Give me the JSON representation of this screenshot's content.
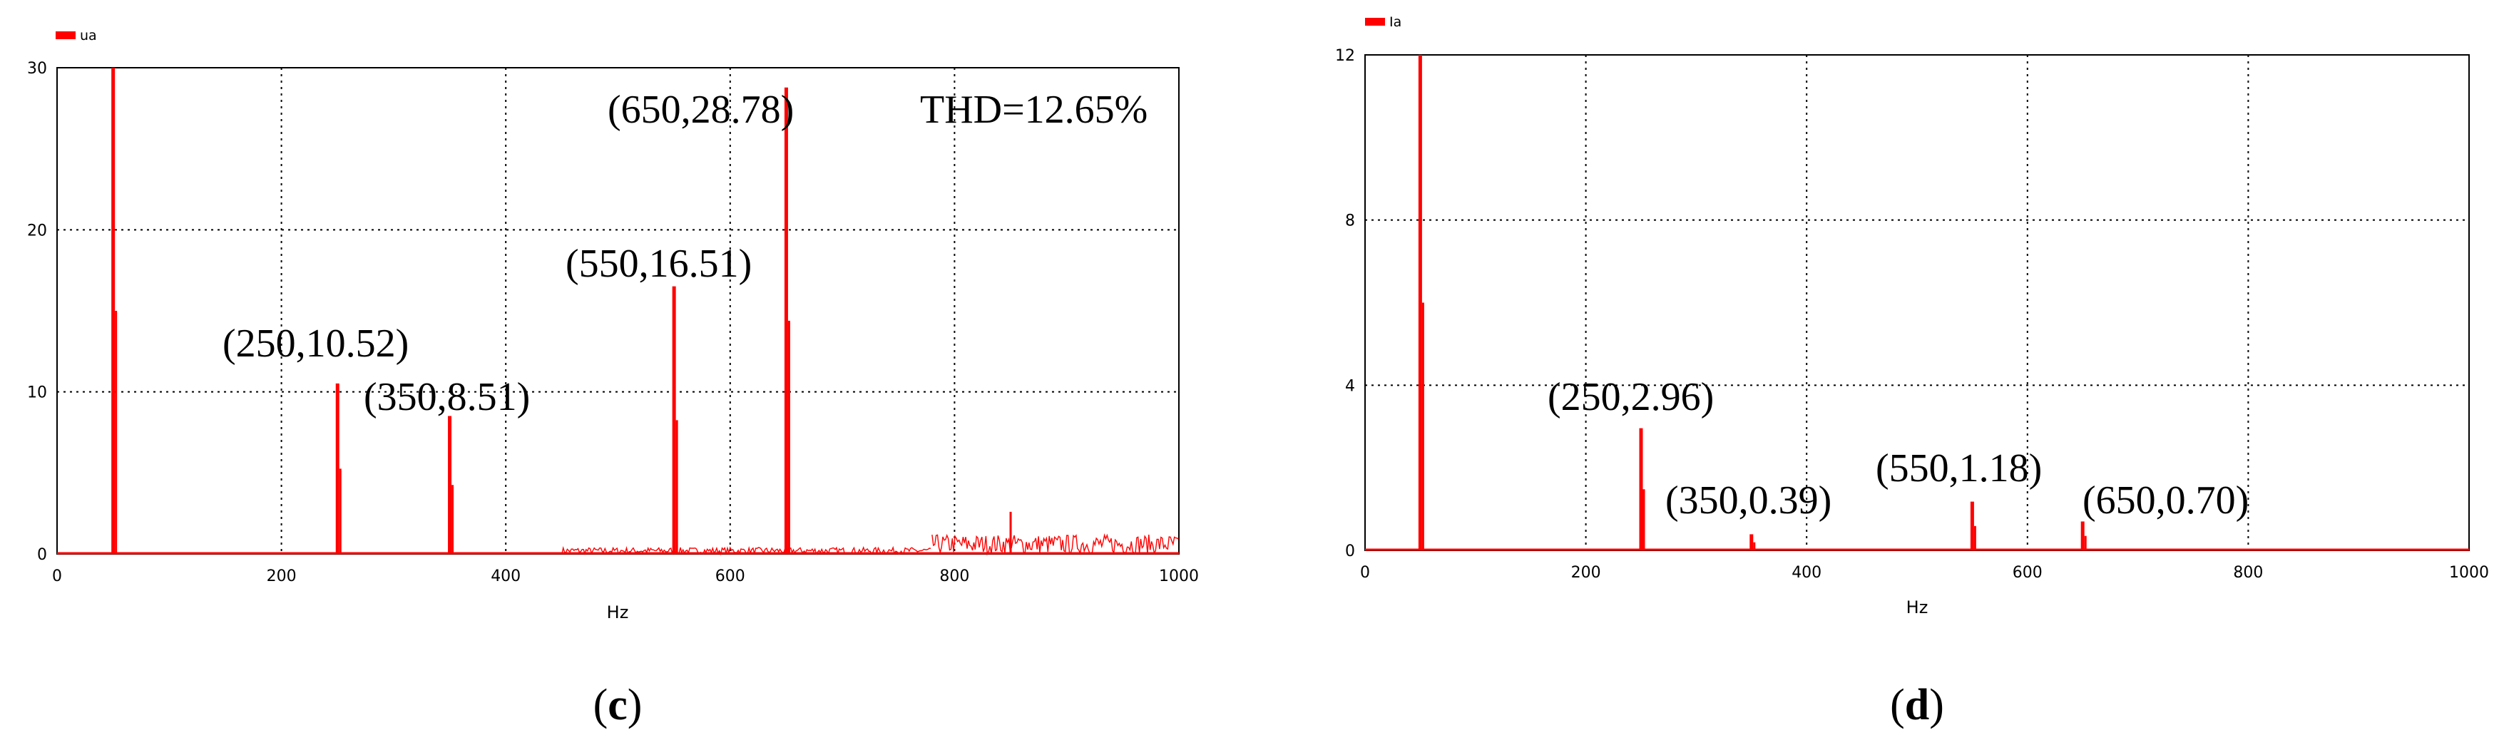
{
  "panels": [
    {
      "legend": "ua",
      "caption_letter": "c",
      "chart_data": {
        "type": "bar",
        "series": [
          {
            "name": "ua"
          }
        ],
        "xlabel": "Hz",
        "ylabel": "",
        "xlim": [
          0,
          1000
        ],
        "ylim": [
          0,
          30
        ],
        "x_ticks": [
          0,
          200,
          400,
          600,
          800,
          1000
        ],
        "y_ticks": [
          0,
          10,
          20,
          30
        ],
        "grid": true,
        "legend_position": "top-left",
        "peaks": [
          {
            "x": 50,
            "y": 30
          },
          {
            "x": 250,
            "y": 10.52
          },
          {
            "x": 350,
            "y": 8.51
          },
          {
            "x": 550,
            "y": 16.51
          },
          {
            "x": 650,
            "y": 28.78
          }
        ],
        "noise_floor": [
          {
            "x_from": 450,
            "x_to": 780,
            "max_y": 0.4
          },
          {
            "x_from": 780,
            "x_to": 1000,
            "max_y": 1.2
          }
        ],
        "extra_spikes": [
          {
            "x": 850,
            "y": 2.6
          }
        ],
        "annotations": [
          {
            "text": "(250,10.52)"
          },
          {
            "text": "(350,8.51)"
          },
          {
            "text": "(550,16.51)"
          },
          {
            "text": "(650,28.78)"
          },
          {
            "text": "THD=12.65%"
          }
        ]
      }
    },
    {
      "legend": "Ia",
      "caption_letter": "d",
      "chart_data": {
        "type": "bar",
        "series": [
          {
            "name": "Ia"
          }
        ],
        "xlabel": "Hz",
        "ylabel": "",
        "xlim": [
          0,
          1000
        ],
        "ylim": [
          0,
          12
        ],
        "x_ticks": [
          0,
          200,
          400,
          600,
          800,
          1000
        ],
        "y_ticks": [
          0,
          4,
          8,
          12
        ],
        "grid": true,
        "legend_position": "top-left",
        "peaks": [
          {
            "x": 50,
            "y": 12
          },
          {
            "x": 250,
            "y": 2.96
          },
          {
            "x": 350,
            "y": 0.39
          },
          {
            "x": 550,
            "y": 1.18
          },
          {
            "x": 650,
            "y": 0.7
          }
        ],
        "noise_floor": [],
        "extra_spikes": [],
        "annotations": [
          {
            "text": "(250,2.96)"
          },
          {
            "text": "(350,0.39)"
          },
          {
            "text": "(550,1.18)"
          },
          {
            "text": "(650,0.70)"
          }
        ]
      }
    }
  ],
  "colors": {
    "series": "#ff0000",
    "grid": "#000000",
    "axis": "#000000",
    "text": "#000000"
  }
}
